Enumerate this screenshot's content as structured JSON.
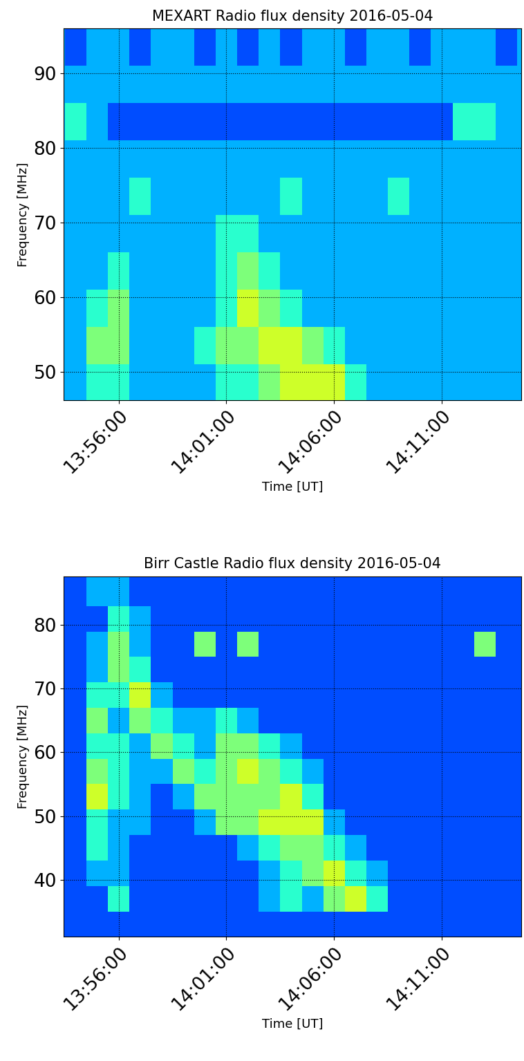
{
  "chart_data": [
    {
      "type": "heatmap",
      "title": "MEXART Radio flux density 2016-05-04",
      "x_label": "Time [UT]",
      "y_label": "Frequency [MHz]",
      "xlim": [
        833.43,
        854.7
      ],
      "xticks": [
        {
          "value": 836,
          "label": "13:56:00"
        },
        {
          "value": 841,
          "label": "14:01:00"
        },
        {
          "value": 846,
          "label": "14:06:00"
        },
        {
          "value": 851,
          "label": "14:11:00"
        }
      ],
      "ylim": [
        46.2,
        96
      ],
      "yticks": [
        50,
        60,
        70,
        80,
        90
      ],
      "grid": true,
      "x_edges": [
        833.5,
        834.5,
        835.5,
        836.5,
        837.5,
        838.5,
        839.5,
        840.5,
        841.5,
        842.5,
        843.5,
        844.5,
        845.5,
        846.5,
        847.5,
        848.5,
        849.5,
        850.5,
        851.5,
        852.5,
        853.5,
        854.5
      ],
      "y_edges": [
        46,
        51,
        56,
        61,
        66,
        71,
        76,
        81,
        86,
        91,
        96
      ],
      "zlim": [
        0,
        10
      ],
      "cells": [
        [
          3,
          4,
          4,
          3,
          3,
          3,
          3,
          4,
          4,
          5,
          6,
          6,
          6,
          4,
          3,
          3,
          3,
          3,
          3,
          3,
          3
        ],
        [
          3,
          5,
          5,
          3,
          3,
          3,
          4,
          5,
          5,
          6,
          6,
          5,
          4,
          3,
          3,
          3,
          3,
          3,
          3,
          3,
          3
        ],
        [
          3,
          4,
          5,
          3,
          3,
          3,
          3,
          4,
          6,
          5,
          4,
          3,
          3,
          3,
          3,
          3,
          3,
          3,
          3,
          3,
          3
        ],
        [
          3,
          3,
          4,
          3,
          3,
          3,
          3,
          4,
          5,
          4,
          3,
          3,
          3,
          3,
          3,
          3,
          3,
          3,
          3,
          3,
          3
        ],
        [
          3,
          3,
          3,
          3,
          3,
          3,
          3,
          4,
          4,
          3,
          3,
          3,
          3,
          3,
          3,
          3,
          3,
          3,
          3,
          3,
          3
        ],
        [
          3,
          3,
          3,
          4,
          3,
          3,
          3,
          3,
          3,
          3,
          4,
          3,
          3,
          3,
          3,
          4,
          3,
          3,
          3,
          3,
          3
        ],
        [
          3,
          3,
          3,
          3,
          3,
          3,
          3,
          3,
          3,
          3,
          3,
          3,
          3,
          3,
          3,
          3,
          3,
          3,
          3,
          3,
          3
        ],
        [
          4,
          3,
          2,
          2,
          2,
          2,
          2,
          2,
          2,
          2,
          2,
          2,
          2,
          2,
          2,
          2,
          2,
          2,
          4,
          4,
          3
        ],
        [
          3,
          3,
          3,
          3,
          3,
          3,
          3,
          3,
          3,
          3,
          3,
          3,
          3,
          3,
          3,
          3,
          3,
          3,
          3,
          3,
          3
        ],
        [
          2,
          3,
          3,
          2,
          3,
          3,
          2,
          3,
          2,
          3,
          2,
          3,
          3,
          2,
          3,
          3,
          2,
          3,
          3,
          3,
          2
        ]
      ]
    },
    {
      "type": "heatmap",
      "title": "Birr Castle Radio flux density 2016-05-04",
      "x_label": "Time [UT]",
      "y_label": "Frequency [MHz]",
      "xlim": [
        833.43,
        854.7
      ],
      "xticks": [
        {
          "value": 836,
          "label": "13:56:00"
        },
        {
          "value": 841,
          "label": "14:01:00"
        },
        {
          "value": 846,
          "label": "14:06:00"
        },
        {
          "value": 851,
          "label": "14:11:00"
        }
      ],
      "ylim": [
        31,
        87.7
      ],
      "yticks": [
        40,
        50,
        60,
        70,
        80
      ],
      "grid": true,
      "x_edges": [
        833.5,
        834.5,
        835.5,
        836.5,
        837.5,
        838.5,
        839.5,
        840.5,
        841.5,
        842.5,
        843.5,
        844.5,
        845.5,
        846.5,
        847.5,
        848.5,
        849.5,
        850.5,
        851.5,
        852.5,
        853.5,
        854.5
      ],
      "y_edges": [
        31,
        35,
        39,
        43,
        47,
        51,
        55,
        59,
        63,
        67,
        71,
        75,
        79,
        83,
        88
      ],
      "zlim": [
        0,
        10
      ],
      "cells": [
        [
          2,
          2,
          2,
          2,
          2,
          2,
          2,
          2,
          2,
          2,
          2,
          2,
          2,
          2,
          2,
          2,
          2,
          2,
          2,
          2,
          2
        ],
        [
          2,
          2,
          4,
          2,
          2,
          2,
          2,
          2,
          2,
          3,
          4,
          3,
          5,
          6,
          4,
          2,
          2,
          2,
          2,
          2,
          2
        ],
        [
          2,
          3,
          3,
          2,
          2,
          2,
          2,
          2,
          2,
          3,
          4,
          5,
          6,
          4,
          3,
          2,
          2,
          2,
          2,
          2,
          2
        ],
        [
          2,
          4,
          3,
          2,
          2,
          2,
          2,
          2,
          3,
          4,
          5,
          5,
          4,
          3,
          2,
          2,
          2,
          2,
          2,
          2,
          2
        ],
        [
          2,
          4,
          3,
          3,
          2,
          2,
          3,
          5,
          5,
          6,
          6,
          6,
          3,
          2,
          2,
          2,
          2,
          2,
          2,
          2,
          2
        ],
        [
          2,
          6,
          4,
          3,
          2,
          3,
          5,
          5,
          5,
          5,
          6,
          4,
          2,
          2,
          2,
          2,
          2,
          2,
          2,
          2,
          2
        ],
        [
          2,
          5,
          4,
          3,
          3,
          5,
          4,
          5,
          6,
          5,
          4,
          3,
          2,
          2,
          2,
          2,
          2,
          2,
          2,
          2,
          2
        ],
        [
          2,
          4,
          4,
          3,
          5,
          4,
          3,
          5,
          5,
          4,
          3,
          2,
          2,
          2,
          2,
          2,
          2,
          2,
          2,
          2,
          2
        ],
        [
          2,
          5,
          3,
          5,
          4,
          3,
          3,
          4,
          3,
          2,
          2,
          2,
          2,
          2,
          2,
          2,
          2,
          2,
          2,
          2,
          2
        ],
        [
          2,
          4,
          4,
          6,
          3,
          2,
          2,
          2,
          2,
          2,
          2,
          2,
          2,
          2,
          2,
          2,
          2,
          2,
          2,
          2,
          2
        ],
        [
          2,
          3,
          5,
          4,
          2,
          2,
          2,
          2,
          2,
          2,
          2,
          2,
          2,
          2,
          2,
          2,
          2,
          2,
          2,
          2,
          2
        ],
        [
          2,
          3,
          5,
          3,
          2,
          2,
          5,
          2,
          5,
          2,
          2,
          2,
          2,
          2,
          2,
          2,
          2,
          2,
          2,
          5,
          2
        ],
        [
          2,
          2,
          4,
          3,
          2,
          2,
          2,
          2,
          2,
          2,
          2,
          2,
          2,
          2,
          2,
          2,
          2,
          2,
          2,
          2,
          2
        ],
        [
          2,
          3,
          3,
          2,
          2,
          2,
          2,
          2,
          2,
          2,
          2,
          2,
          2,
          2,
          2,
          2,
          2,
          2,
          2,
          2,
          2
        ]
      ]
    }
  ]
}
